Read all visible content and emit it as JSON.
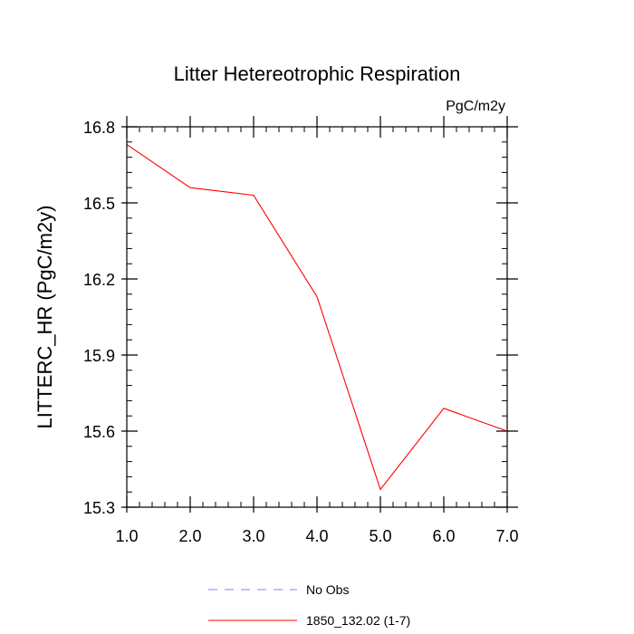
{
  "chart_data": {
    "type": "line",
    "title": "Litter Hetereotrophic Respiration",
    "units_label": "PgC/m2y",
    "ylabel": "LITTERC_HR  (PgC/m2y)",
    "xlabel": "",
    "xlim": [
      1.0,
      7.0
    ],
    "ylim": [
      15.3,
      16.8
    ],
    "x_ticks": [
      1.0,
      2.0,
      3.0,
      4.0,
      5.0,
      6.0,
      7.0
    ],
    "x_tick_labels": [
      "1.0",
      "2.0",
      "3.0",
      "4.0",
      "5.0",
      "6.0",
      "7.0"
    ],
    "y_ticks": [
      15.3,
      15.6,
      15.9,
      16.2,
      16.5,
      16.8
    ],
    "y_tick_labels": [
      "15.3",
      "15.6",
      "15.9",
      "16.2",
      "16.5",
      "16.8"
    ],
    "x_minor_step": 0.2,
    "y_minor_step": 0.06,
    "grid": false,
    "legend_position": "bottom",
    "series": [
      {
        "name": "No Obs",
        "style": "dashed",
        "color": "#8080ff",
        "x": [],
        "values": []
      },
      {
        "name": "1850_132.02 (1-7)",
        "style": "solid",
        "color": "#ff0000",
        "x": [
          1.0,
          2.0,
          3.0,
          4.0,
          5.0,
          6.0,
          7.0
        ],
        "values": [
          16.73,
          16.56,
          16.53,
          16.13,
          15.37,
          15.69,
          15.6
        ]
      }
    ]
  }
}
